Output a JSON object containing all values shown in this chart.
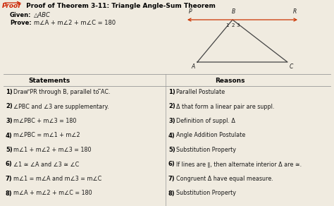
{
  "title_proof": "Proof",
  "title_main": " Proof of Theorem 3-11: Triangle Angle-Sum Theorem",
  "given_label": "Given:",
  "given_text": "△ABC",
  "prove_label": "Prove:",
  "prove_text": "m∠A + m∠2 + m∠C = 180",
  "statements_header": "Statements",
  "reasons_header": "Reasons",
  "statements": [
    "Draw ⃗PR through B, parallel to ̅AC.",
    "∠PBC and ∠3 are supplementary.",
    "m∠PBC + m∠3 = 180",
    "m∠PBC = m∠1 + m∠2",
    "m∠1 + m∠2 + m∠3 = 180",
    "∠1 ≅ ∠A and ∠3 ≅ ∠C",
    "m∠1 = m∠A and m∠3 = m∠C",
    "m∠A + m∠2 + m∠C = 180"
  ],
  "reasons": [
    "Parallel Postulate",
    "Δ that form a linear pair are suppl.",
    "Definition of suppl. Δ",
    "Angle Addition Postulate",
    "Substitution Property",
    "If lines are ∥, then alternate interior Δ are ≅.",
    "Congruent Δ have equal measure.",
    "Substitution Property"
  ],
  "bg_color": "#f0ebe0",
  "text_color": "#1a1a1a",
  "header_color": "#000000",
  "proof_red": "#cc2200",
  "divider_color": "#999999",
  "triangle_color": "#444444",
  "arrow_color": "#cc3300"
}
